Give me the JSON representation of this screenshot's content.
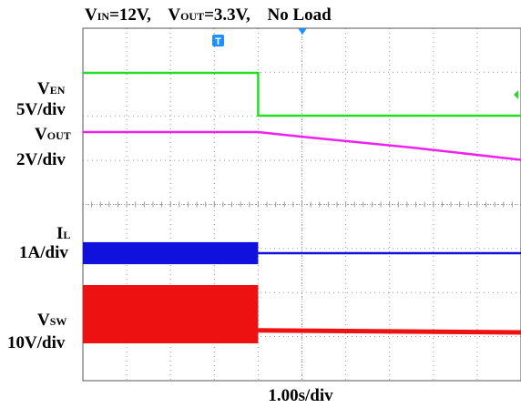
{
  "title": {
    "vin_main": "V",
    "vin_sub": "IN",
    "vin_val": "=12V,",
    "vout_main": "V",
    "vout_sub": "OUT",
    "vout_val": "=3.3V,",
    "load": "No Load"
  },
  "channel_labels": {
    "ven_main": "V",
    "ven_sub": "EN",
    "ven_scale": "5V/div",
    "vout_main": "V",
    "vout_sub": "OUT",
    "vout_scale": "2V/div",
    "il_main": "I",
    "il_sub": "L",
    "il_scale": "1A/div",
    "vsw_main": "V",
    "vsw_sub": "SW",
    "vsw_scale": "10V/div"
  },
  "xlabel": "1.00s/div",
  "trigger_marker": "T",
  "colors": {
    "ven": "#22dd22",
    "vout": "#ee22ee",
    "il": "#1111dd",
    "vsw": "#ee1111",
    "grid": "#999999",
    "frame": "#555555",
    "trigger": "#1e90ff"
  },
  "chart_data": {
    "type": "line",
    "x_unit": "div",
    "xlim": [
      -5,
      5
    ],
    "grid_x_divisions": 10,
    "grid_y_divisions": 8,
    "trigger_x": 0,
    "event_x": -1.0,
    "series": [
      {
        "name": "V_EN",
        "scale": "5V/div",
        "x": [
          -5,
          -1.0,
          -1.0,
          5
        ],
        "y": [
          12,
          12,
          0,
          0
        ]
      },
      {
        "name": "V_OUT",
        "scale": "2V/div",
        "x": [
          -5,
          -1.0,
          0,
          2.5,
          5
        ],
        "y": [
          3.3,
          3.3,
          3.0,
          2.3,
          1.5
        ]
      },
      {
        "name": "I_L",
        "scale": "1A/div",
        "switching_until_x": -1.0,
        "ripple_pp": 1.1,
        "x": [
          -1.0,
          5
        ],
        "y": [
          0,
          0
        ]
      },
      {
        "name": "V_SW",
        "scale": "10V/div",
        "switching_until_x": -1.0,
        "high": 12,
        "low": 0,
        "x": [
          -1.0,
          5
        ],
        "y": [
          0.5,
          0
        ]
      }
    ]
  }
}
